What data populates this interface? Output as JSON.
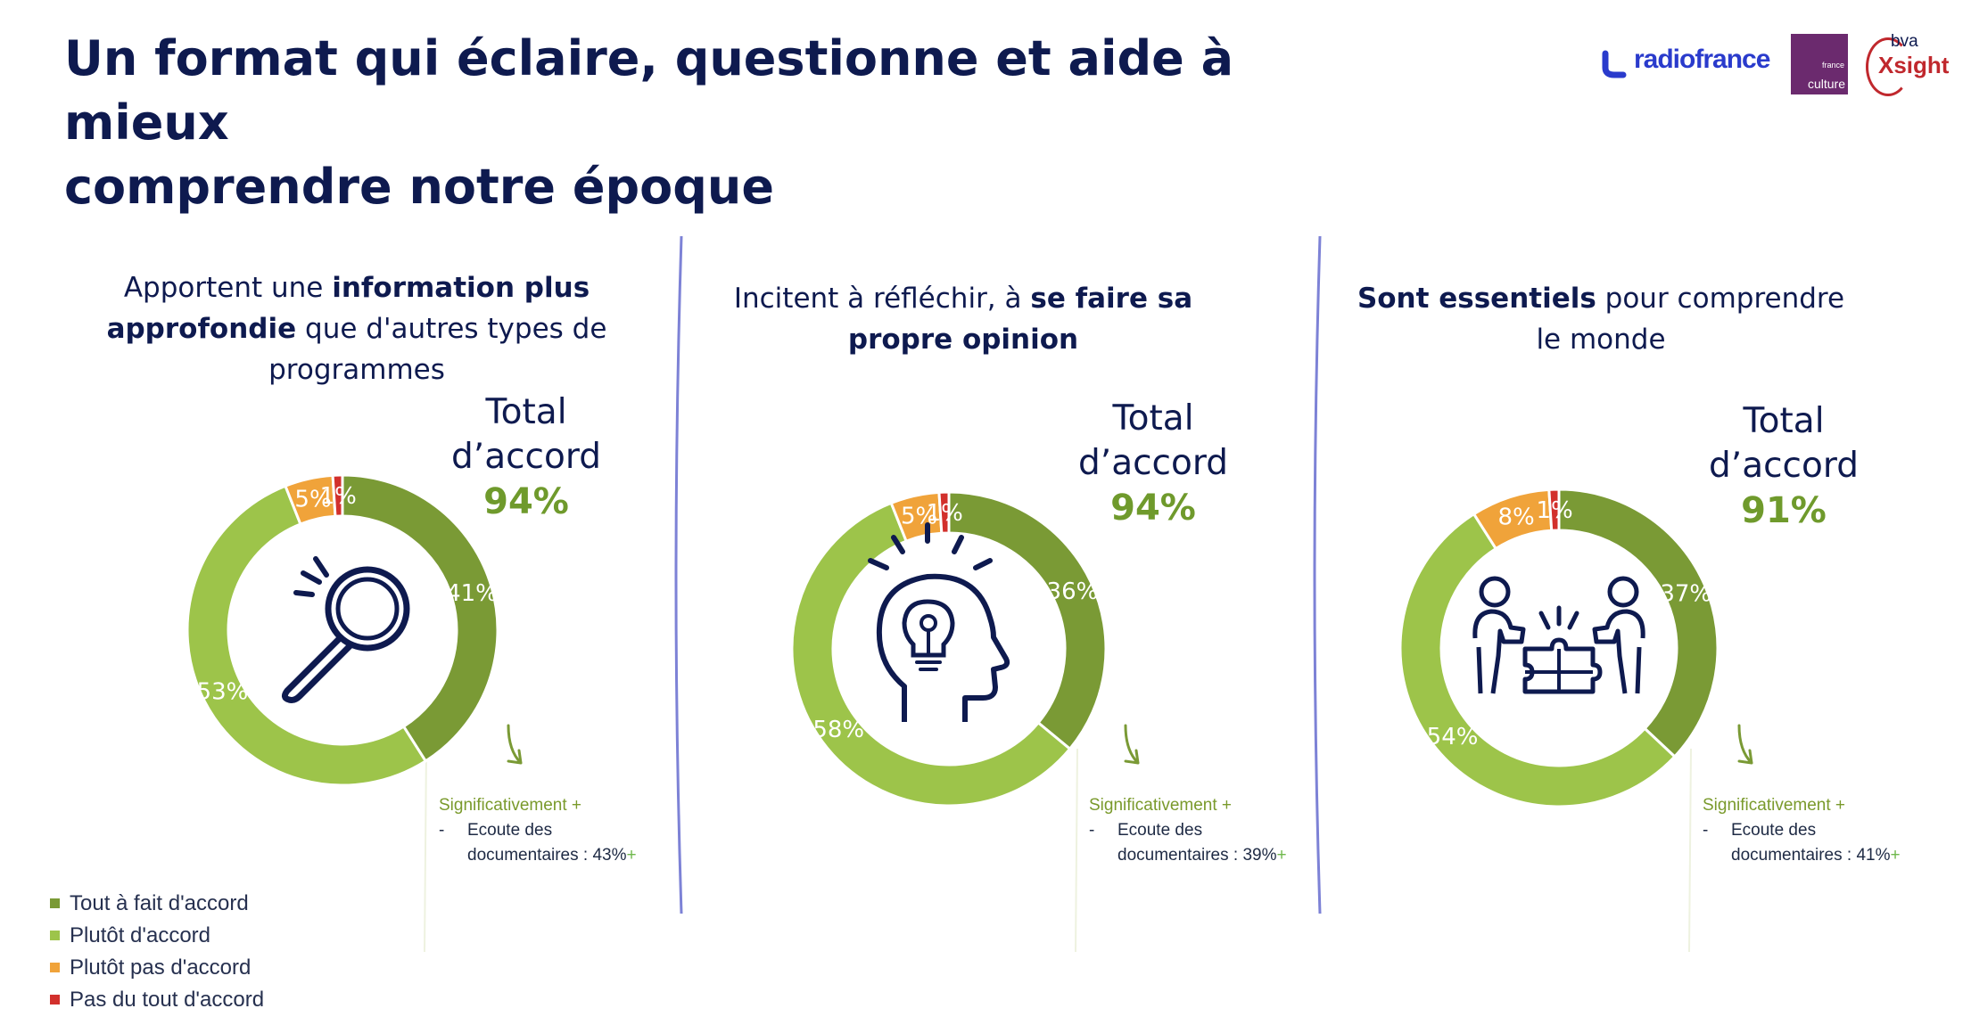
{
  "title": {
    "line1": "Un format qui éclaire, questionne et aide à mieux",
    "line2": "comprendre notre époque"
  },
  "logos": {
    "radiofrance": "radiofrance",
    "franceculture_small": "france",
    "franceculture": "culture",
    "bva": "bva",
    "xsight": "Xsight"
  },
  "colors": {
    "tout_a_fait": "#7a9a35",
    "plutot": "#9dc44a",
    "plutot_pas": "#f0a33a",
    "pas_du_tout": "#d2302c",
    "title": "#0e1a4f",
    "accent_total": "#6f9a2c"
  },
  "panels": [
    {
      "question_pre": "Apportent une ",
      "question_bold": "information plus approfondie",
      "question_post": " que d'autres types de programmes",
      "total_label_1": "Total",
      "total_label_2": "d’accord",
      "total_value": "94%",
      "icon": "magnifier-icon",
      "note_sig": "Significativement +",
      "note_dash": "-",
      "note_line1": "Ecoute des",
      "note_line2": "documentaires : 43%",
      "note_plus": "+"
    },
    {
      "question_pre": "Incitent à réfléchir, à ",
      "question_bold": "se faire sa propre opinion",
      "question_post": "",
      "total_label_1": "Total",
      "total_label_2": "d’accord",
      "total_value": "94%",
      "icon": "head-lightbulb-icon",
      "note_sig": "Significativement +",
      "note_dash": "-",
      "note_line1": "Ecoute des",
      "note_line2": "documentaires : 39%",
      "note_plus": "+"
    },
    {
      "question_pre": "",
      "question_bold": "Sont essentiels",
      "question_post": " pour comprendre le monde",
      "total_label_1": "Total",
      "total_label_2": "d’accord",
      "total_value": "91%",
      "icon": "people-puzzle-icon",
      "note_sig": "Significativement +",
      "note_dash": "-",
      "note_line1": "Ecoute des",
      "note_line2": "documentaires : 41%",
      "note_plus": "+"
    }
  ],
  "legend": [
    "Tout à fait d'accord",
    "Plutôt d'accord",
    "Plutôt pas d'accord",
    "Pas du tout d'accord"
  ],
  "chart_data": [
    {
      "type": "pie",
      "categories": [
        "Tout à fait d'accord",
        "Plutôt d'accord",
        "Plutôt pas d'accord",
        "Pas du tout d'accord"
      ],
      "values": [
        41,
        53,
        5,
        1
      ],
      "labels": [
        "41%",
        "53%",
        "5%",
        "1%"
      ],
      "legend_position": "bottom-left"
    },
    {
      "type": "pie",
      "categories": [
        "Tout à fait d'accord",
        "Plutôt d'accord",
        "Plutôt pas d'accord",
        "Pas du tout d'accord"
      ],
      "values": [
        36,
        58,
        5,
        1
      ],
      "labels": [
        "36%",
        "58%",
        "5%",
        "1%"
      ],
      "legend_position": "bottom-left"
    },
    {
      "type": "pie",
      "categories": [
        "Tout à fait d'accord",
        "Plutôt d'accord",
        "Plutôt pas d'accord",
        "Pas du tout d'accord"
      ],
      "values": [
        37,
        54,
        8,
        1
      ],
      "labels": [
        "37%",
        "54%",
        "8%",
        "1%"
      ],
      "legend_position": "bottom-left"
    }
  ]
}
